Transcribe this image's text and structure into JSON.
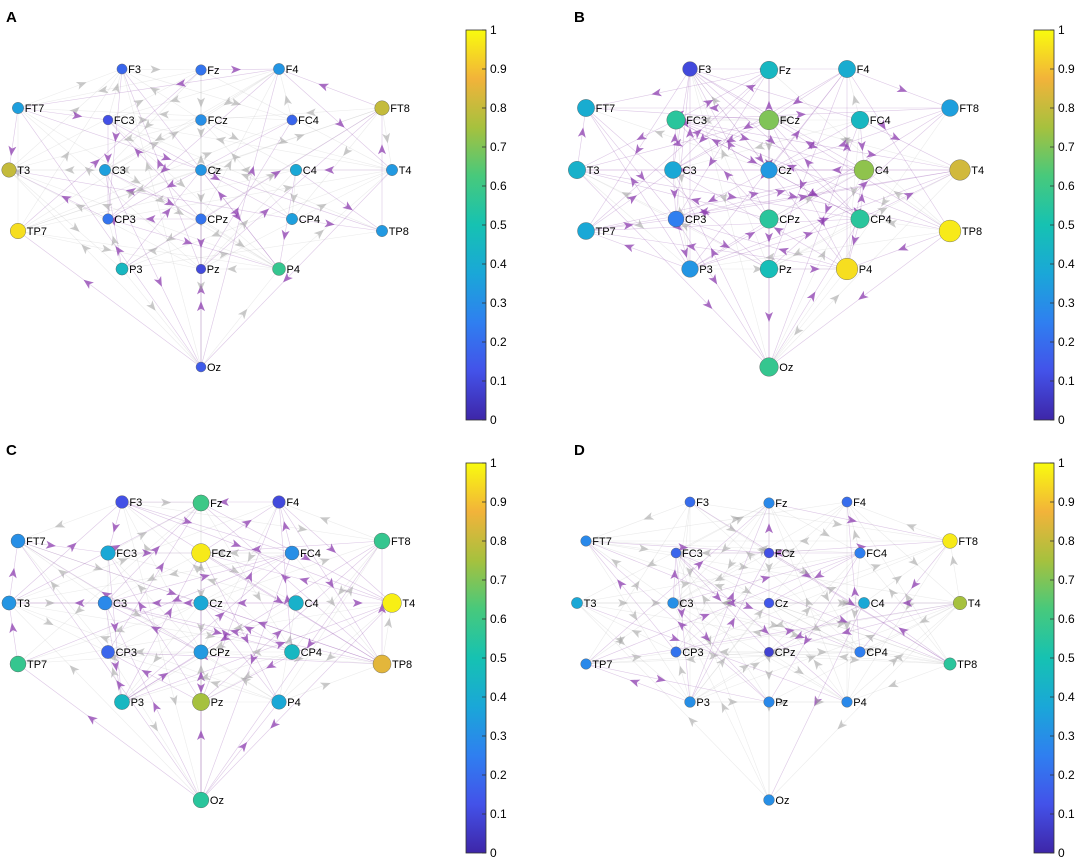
{
  "colorbar": {
    "ticks": [
      "0",
      "0.1",
      "0.2",
      "0.3",
      "0.4",
      "0.5",
      "0.6",
      "0.7",
      "0.8",
      "0.9",
      "1"
    ],
    "stops": [
      "#3e26a8",
      "#4352e9",
      "#2f7ff0",
      "#1aa7d8",
      "#16c2b2",
      "#47c97c",
      "#a6c13e",
      "#f2b33a",
      "#f9fb0e"
    ]
  },
  "chart_data": [
    {
      "type": "network",
      "panel": "A",
      "nodes": [
        {
          "label": "F3",
          "value": 0.18
        },
        {
          "label": "Fz",
          "value": 0.22
        },
        {
          "label": "F4",
          "value": 0.32
        },
        {
          "label": "FT7",
          "value": 0.35
        },
        {
          "label": "FC3",
          "value": 0.12
        },
        {
          "label": "FCz",
          "value": 0.3
        },
        {
          "label": "FC4",
          "value": 0.18
        },
        {
          "label": "FT8",
          "value": 0.8
        },
        {
          "label": "T3",
          "value": 0.8
        },
        {
          "label": "C3",
          "value": 0.35
        },
        {
          "label": "Cz",
          "value": 0.32
        },
        {
          "label": "C4",
          "value": 0.38
        },
        {
          "label": "T4",
          "value": 0.33
        },
        {
          "label": "TP7",
          "value": 0.95
        },
        {
          "label": "CP3",
          "value": 0.22
        },
        {
          "label": "CPz",
          "value": 0.22
        },
        {
          "label": "CP4",
          "value": 0.35
        },
        {
          "label": "TP8",
          "value": 0.33
        },
        {
          "label": "P3",
          "value": 0.45
        },
        {
          "label": "Pz",
          "value": 0.1
        },
        {
          "label": "P4",
          "value": 0.58
        },
        {
          "label": "Oz",
          "value": 0.15
        }
      ]
    },
    {
      "type": "network",
      "panel": "B",
      "nodes": [
        {
          "label": "F3",
          "value": 0.1
        },
        {
          "label": "Fz",
          "value": 0.45
        },
        {
          "label": "F4",
          "value": 0.4
        },
        {
          "label": "FT7",
          "value": 0.4
        },
        {
          "label": "FC3",
          "value": 0.55
        },
        {
          "label": "FCz",
          "value": 0.7
        },
        {
          "label": "FC4",
          "value": 0.45
        },
        {
          "label": "FT8",
          "value": 0.35
        },
        {
          "label": "T3",
          "value": 0.42
        },
        {
          "label": "C3",
          "value": 0.38
        },
        {
          "label": "Cz",
          "value": 0.33
        },
        {
          "label": "C4",
          "value": 0.72
        },
        {
          "label": "T4",
          "value": 0.82
        },
        {
          "label": "TP7",
          "value": 0.38
        },
        {
          "label": "CP3",
          "value": 0.25
        },
        {
          "label": "CPz",
          "value": 0.55
        },
        {
          "label": "CP4",
          "value": 0.55
        },
        {
          "label": "TP8",
          "value": 0.97
        },
        {
          "label": "P3",
          "value": 0.32
        },
        {
          "label": "Pz",
          "value": 0.48
        },
        {
          "label": "P4",
          "value": 0.95
        },
        {
          "label": "Oz",
          "value": 0.58
        }
      ]
    },
    {
      "type": "network",
      "panel": "C",
      "nodes": [
        {
          "label": "F3",
          "value": 0.12
        },
        {
          "label": "Fz",
          "value": 0.6
        },
        {
          "label": "F4",
          "value": 0.1
        },
        {
          "label": "FT7",
          "value": 0.3
        },
        {
          "label": "FC3",
          "value": 0.38
        },
        {
          "label": "FCz",
          "value": 0.97
        },
        {
          "label": "FC4",
          "value": 0.3
        },
        {
          "label": "FT8",
          "value": 0.58
        },
        {
          "label": "T3",
          "value": 0.32
        },
        {
          "label": "C3",
          "value": 0.28
        },
        {
          "label": "Cz",
          "value": 0.38
        },
        {
          "label": "C4",
          "value": 0.42
        },
        {
          "label": "T4",
          "value": 0.98
        },
        {
          "label": "TP7",
          "value": 0.58
        },
        {
          "label": "CP3",
          "value": 0.18
        },
        {
          "label": "CPz",
          "value": 0.33
        },
        {
          "label": "CP4",
          "value": 0.45
        },
        {
          "label": "TP8",
          "value": 0.85
        },
        {
          "label": "P3",
          "value": 0.45
        },
        {
          "label": "Pz",
          "value": 0.75
        },
        {
          "label": "P4",
          "value": 0.38
        },
        {
          "label": "Oz",
          "value": 0.55
        }
      ]
    },
    {
      "type": "network",
      "panel": "D",
      "nodes": [
        {
          "label": "F3",
          "value": 0.2
        },
        {
          "label": "Fz",
          "value": 0.28
        },
        {
          "label": "F4",
          "value": 0.2
        },
        {
          "label": "FT7",
          "value": 0.28
        },
        {
          "label": "FC3",
          "value": 0.18
        },
        {
          "label": "FCz",
          "value": 0.12
        },
        {
          "label": "FC4",
          "value": 0.25
        },
        {
          "label": "FT8",
          "value": 0.97
        },
        {
          "label": "T3",
          "value": 0.38
        },
        {
          "label": "C3",
          "value": 0.3
        },
        {
          "label": "Cz",
          "value": 0.14
        },
        {
          "label": "C4",
          "value": 0.38
        },
        {
          "label": "T4",
          "value": 0.75
        },
        {
          "label": "TP7",
          "value": 0.28
        },
        {
          "label": "CP3",
          "value": 0.22
        },
        {
          "label": "CPz",
          "value": 0.08
        },
        {
          "label": "CP4",
          "value": 0.25
        },
        {
          "label": "TP8",
          "value": 0.55
        },
        {
          "label": "P3",
          "value": 0.3
        },
        {
          "label": "Pz",
          "value": 0.28
        },
        {
          "label": "P4",
          "value": 0.28
        },
        {
          "label": "Oz",
          "value": 0.3
        }
      ]
    }
  ]
}
